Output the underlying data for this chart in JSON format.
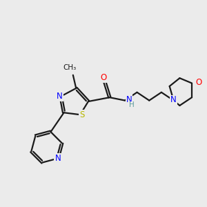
{
  "background_color": "#ebebeb",
  "bond_color": "#1a1a1a",
  "atom_colors": {
    "N": "#0000ff",
    "O": "#ff0000",
    "S": "#b8b800",
    "C": "#1a1a1a",
    "H": "#5a9a9a"
  },
  "figsize": [
    3.0,
    3.0
  ],
  "dpi": 100
}
